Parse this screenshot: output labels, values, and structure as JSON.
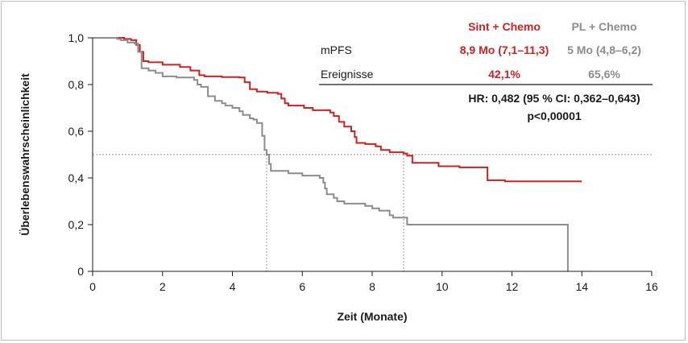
{
  "chart_data": {
    "type": "line",
    "subtype": "kaplan-meier",
    "xlabel": "Zeit (Monate)",
    "ylabel": "Überlebenswahrscheinlichkeit",
    "xlim": [
      0,
      16
    ],
    "ylim": [
      0,
      1.0
    ],
    "xticks": [
      "0",
      "2",
      "4",
      "6",
      "8",
      "10",
      "12",
      "14",
      "16"
    ],
    "yticks": [
      "0",
      "0,2",
      "0,4",
      "0,6",
      "0,8",
      "1,0"
    ],
    "reference_line_y": 0.5,
    "median_markers_x": [
      4.98,
      8.9
    ],
    "series": [
      {
        "name": "Sint + Chemo",
        "color": "#cc2222",
        "points": [
          [
            0,
            1.0
          ],
          [
            0.7,
            1.0
          ],
          [
            0.9,
            0.995
          ],
          [
            1.1,
            0.99
          ],
          [
            1.25,
            0.97
          ],
          [
            1.35,
            0.94
          ],
          [
            1.45,
            0.9
          ],
          [
            1.6,
            0.895
          ],
          [
            2.0,
            0.885
          ],
          [
            2.5,
            0.875
          ],
          [
            2.8,
            0.86
          ],
          [
            3.05,
            0.84
          ],
          [
            3.2,
            0.835
          ],
          [
            3.7,
            0.832
          ],
          [
            4.2,
            0.83
          ],
          [
            4.35,
            0.81
          ],
          [
            4.5,
            0.78
          ],
          [
            4.7,
            0.77
          ],
          [
            5.0,
            0.765
          ],
          [
            5.3,
            0.76
          ],
          [
            5.4,
            0.74
          ],
          [
            5.5,
            0.72
          ],
          [
            5.6,
            0.71
          ],
          [
            6.05,
            0.7
          ],
          [
            6.3,
            0.69
          ],
          [
            6.8,
            0.68
          ],
          [
            6.9,
            0.665
          ],
          [
            7.05,
            0.64
          ],
          [
            7.2,
            0.62
          ],
          [
            7.4,
            0.6
          ],
          [
            7.5,
            0.575
          ],
          [
            7.55,
            0.55
          ],
          [
            7.8,
            0.545
          ],
          [
            8.1,
            0.535
          ],
          [
            8.25,
            0.52
          ],
          [
            8.5,
            0.51
          ],
          [
            8.9,
            0.505
          ],
          [
            9.0,
            0.495
          ],
          [
            9.15,
            0.465
          ],
          [
            9.9,
            0.45
          ],
          [
            10.5,
            0.445
          ],
          [
            11.3,
            0.39
          ],
          [
            11.8,
            0.385
          ],
          [
            12.4,
            0.385
          ],
          [
            14.0,
            0.385
          ]
        ]
      },
      {
        "name": "PL + Chemo",
        "color": "#8c8c8c",
        "points": [
          [
            0,
            1.0
          ],
          [
            0.7,
            0.995
          ],
          [
            0.8,
            0.99
          ],
          [
            1.0,
            0.98
          ],
          [
            1.2,
            0.975
          ],
          [
            1.3,
            0.94
          ],
          [
            1.4,
            0.87
          ],
          [
            1.6,
            0.86
          ],
          [
            1.8,
            0.85
          ],
          [
            2.0,
            0.835
          ],
          [
            2.4,
            0.83
          ],
          [
            2.9,
            0.82
          ],
          [
            3.0,
            0.8
          ],
          [
            3.1,
            0.79
          ],
          [
            3.3,
            0.75
          ],
          [
            3.5,
            0.73
          ],
          [
            3.7,
            0.72
          ],
          [
            3.8,
            0.71
          ],
          [
            4.0,
            0.7
          ],
          [
            4.2,
            0.685
          ],
          [
            4.3,
            0.67
          ],
          [
            4.5,
            0.655
          ],
          [
            4.6,
            0.65
          ],
          [
            4.7,
            0.635
          ],
          [
            4.85,
            0.58
          ],
          [
            4.92,
            0.52
          ],
          [
            4.98,
            0.5
          ],
          [
            5.05,
            0.46
          ],
          [
            5.1,
            0.43
          ],
          [
            5.5,
            0.43
          ],
          [
            5.6,
            0.42
          ],
          [
            6.0,
            0.41
          ],
          [
            6.5,
            0.4
          ],
          [
            6.6,
            0.38
          ],
          [
            6.65,
            0.355
          ],
          [
            6.7,
            0.33
          ],
          [
            6.9,
            0.315
          ],
          [
            7.0,
            0.3
          ],
          [
            7.2,
            0.29
          ],
          [
            7.8,
            0.28
          ],
          [
            8.0,
            0.27
          ],
          [
            8.2,
            0.26
          ],
          [
            8.5,
            0.24
          ],
          [
            8.6,
            0.23
          ],
          [
            9.0,
            0.2
          ],
          [
            13.6,
            0.2
          ],
          [
            13.6,
            0.0
          ]
        ]
      }
    ],
    "table": {
      "headers": [
        "Sint + Chemo",
        "PL + Chemo"
      ],
      "rows": [
        {
          "label": "mPFS",
          "values": [
            "8,9 Mo (7,1–11,3)",
            "5 Mo (4,8–6,2)"
          ]
        },
        {
          "label": "Ereignisse",
          "values": [
            "42,1%",
            "65,6%"
          ]
        }
      ],
      "hr": "HR: 0,482 (95 % CI: 0,362–0,643)",
      "p": "p<0,00001"
    }
  }
}
